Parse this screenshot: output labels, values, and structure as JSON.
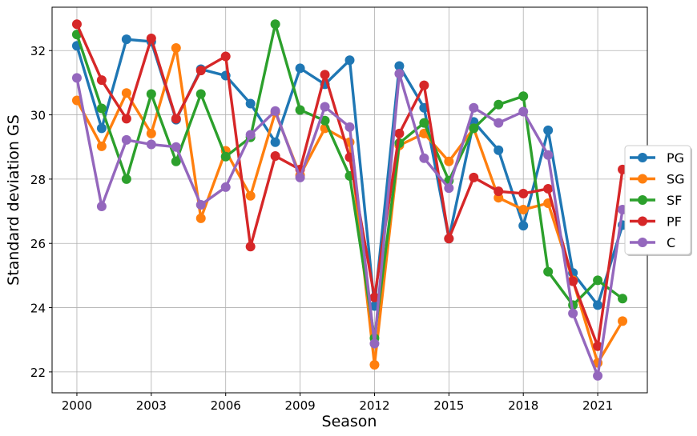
{
  "chart_data": {
    "type": "line",
    "xlabel": "Season",
    "ylabel": "Standard deviation GS",
    "xlim": [
      1999,
      2023
    ],
    "ylim": [
      21.35,
      33.35
    ],
    "xticks": [
      2000,
      2003,
      2006,
      2009,
      2012,
      2015,
      2018,
      2021
    ],
    "yticks": [
      22,
      24,
      26,
      28,
      30,
      32
    ],
    "grid": true,
    "legend_position": "right",
    "x": [
      2000,
      2001,
      2002,
      2003,
      2004,
      2005,
      2006,
      2007,
      2008,
      2009,
      2010,
      2011,
      2012,
      2013,
      2014,
      2015,
      2016,
      2017,
      2018,
      2019,
      2020,
      2021,
      2022
    ],
    "series": [
      {
        "name": "PG",
        "color": "#1f77b4",
        "values": [
          32.15,
          29.58,
          32.35,
          32.28,
          29.85,
          31.42,
          31.22,
          30.35,
          29.15,
          31.45,
          30.95,
          31.7,
          24.05,
          31.52,
          30.22,
          26.15,
          29.78,
          28.9,
          26.55,
          29.52,
          25.08,
          24.08,
          26.57
        ]
      },
      {
        "name": "SG",
        "color": "#ff7f0e",
        "values": [
          30.45,
          29.02,
          30.68,
          29.42,
          32.08,
          26.78,
          28.88,
          27.48,
          30.08,
          28.12,
          29.58,
          29.15,
          22.22,
          29.05,
          29.42,
          28.55,
          29.58,
          27.42,
          27.05,
          27.25,
          24.85,
          22.28,
          23.58
        ]
      },
      {
        "name": "SF",
        "color": "#2ca02c",
        "values": [
          32.5,
          30.2,
          28.0,
          30.65,
          28.55,
          30.65,
          28.7,
          29.3,
          32.82,
          30.15,
          29.82,
          28.1,
          23.05,
          29.12,
          29.75,
          27.95,
          29.58,
          30.32,
          30.58,
          25.12,
          24.08,
          24.85,
          24.28
        ]
      },
      {
        "name": "PF",
        "color": "#d62728",
        "values": [
          32.82,
          31.08,
          29.88,
          32.38,
          29.88,
          31.38,
          31.82,
          25.9,
          28.72,
          28.3,
          31.25,
          28.68,
          24.32,
          29.42,
          30.92,
          26.15,
          28.05,
          27.62,
          27.55,
          27.7,
          24.82,
          22.8,
          28.3
        ]
      },
      {
        "name": "C",
        "color": "#9467bd",
        "values": [
          31.15,
          27.15,
          29.22,
          29.08,
          29.0,
          27.2,
          27.75,
          29.38,
          30.12,
          28.05,
          30.25,
          29.62,
          22.88,
          31.28,
          28.65,
          27.72,
          30.22,
          29.75,
          30.1,
          28.75,
          23.82,
          21.88,
          27.05
        ]
      }
    ]
  }
}
